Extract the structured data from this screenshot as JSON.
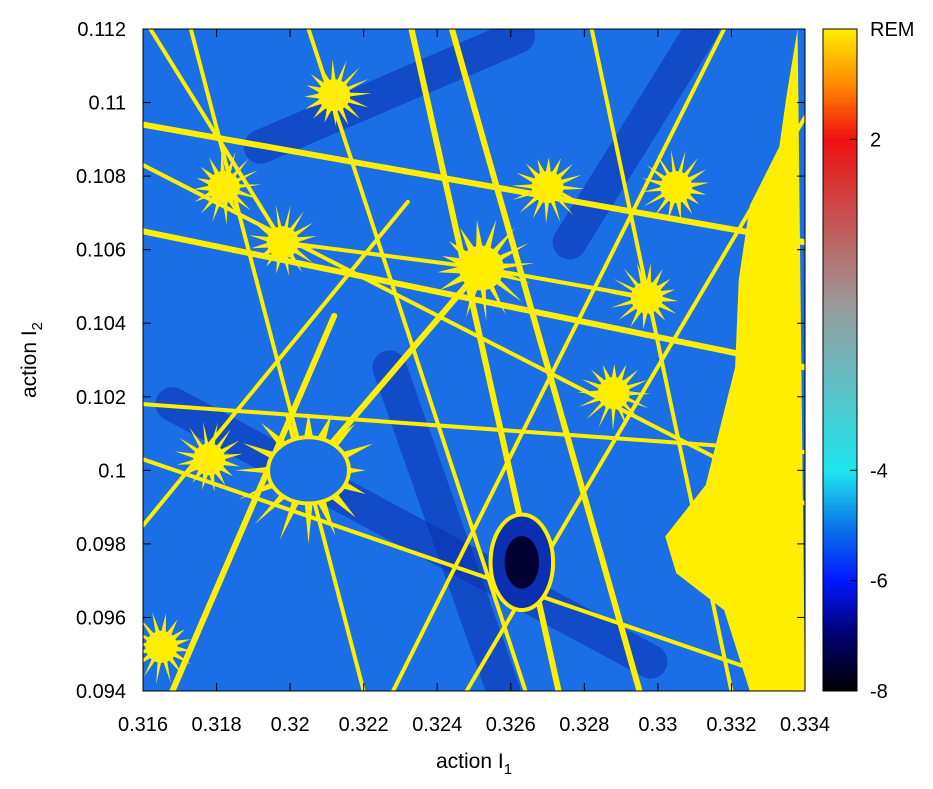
{
  "chart_data": {
    "type": "heatmap",
    "xlabel": "action I",
    "xlabel_sub": "1",
    "ylabel": "action I",
    "ylabel_sub": "2",
    "xlim": [
      0.316,
      0.334
    ],
    "ylim": [
      0.094,
      0.112
    ],
    "x_ticks": [
      "0.316",
      "0.318",
      "0.32",
      "0.322",
      "0.324",
      "0.326",
      "0.328",
      "0.33",
      "0.332",
      "0.334"
    ],
    "y_ticks": [
      "0.094",
      "0.096",
      "0.098",
      "0.1",
      "0.102",
      "0.104",
      "0.106",
      "0.108",
      "0.11",
      "0.112"
    ],
    "colorbar": {
      "title": "REM",
      "range": [
        -8,
        4
      ],
      "ticks": [
        "2",
        "-4",
        "-6",
        "-8"
      ],
      "tick_values": [
        2,
        -4,
        -6,
        -8
      ],
      "colormap": [
        {
          "value": -8,
          "color": "#000000"
        },
        {
          "value": -7,
          "color": "#00006e"
        },
        {
          "value": -6,
          "color": "#0018ff"
        },
        {
          "value": -5,
          "color": "#0a78e8"
        },
        {
          "value": -4,
          "color": "#1fe6f0"
        },
        {
          "value": -1,
          "color": "#9a9a9a"
        },
        {
          "value": 2,
          "color": "#f01010"
        },
        {
          "value": 3,
          "color": "#ff8a00"
        },
        {
          "value": 4,
          "color": "#ffee00"
        }
      ]
    },
    "grid": false,
    "colors": {
      "background_chaotic": "#1a6fe6",
      "regular_structure": "#ffee00",
      "stable_island": "#0a2fb0"
    },
    "features": {
      "resonance_nodes": [
        {
          "x": 0.3205,
          "y": 0.1
        },
        {
          "x": 0.3252,
          "y": 0.1055
        },
        {
          "x": 0.3198,
          "y": 0.1062
        },
        {
          "x": 0.3297,
          "y": 0.1047
        },
        {
          "x": 0.3288,
          "y": 0.1021
        },
        {
          "x": 0.3182,
          "y": 0.1077
        },
        {
          "x": 0.3178,
          "y": 0.1003
        },
        {
          "x": 0.3165,
          "y": 0.0952
        },
        {
          "x": 0.327,
          "y": 0.1077
        },
        {
          "x": 0.3212,
          "y": 0.1102
        },
        {
          "x": 0.3305,
          "y": 0.1077
        }
      ],
      "resonance_lines": [
        [
          0.316,
          0.1094,
          0.334,
          0.1062
        ],
        [
          0.316,
          0.1083,
          0.334,
          0.0991
        ],
        [
          0.316,
          0.1003,
          0.334,
          0.0941
        ],
        [
          0.316,
          0.1065,
          0.334,
          0.1028
        ],
        [
          0.316,
          0.1018,
          0.334,
          0.1005
        ],
        [
          0.316,
          0.0985,
          0.3232,
          0.1073
        ],
        [
          0.3168,
          0.094,
          0.3212,
          0.1042
        ],
        [
          0.3173,
          0.112,
          0.322,
          0.094
        ],
        [
          0.3205,
          0.112,
          0.3264,
          0.094
        ],
        [
          0.3244,
          0.112,
          0.3295,
          0.094
        ],
        [
          0.3228,
          0.094,
          0.3318,
          0.112
        ],
        [
          0.3248,
          0.094,
          0.334,
          0.1096
        ],
        [
          0.3233,
          0.112,
          0.3273,
          0.094
        ],
        [
          0.3282,
          0.112,
          0.332,
          0.094
        ],
        [
          0.3162,
          0.112,
          0.3198,
          0.1062
        ],
        [
          0.3205,
          0.1,
          0.3252,
          0.1055
        ],
        [
          0.3252,
          0.1055,
          0.3297,
          0.1047
        ],
        [
          0.3198,
          0.1062,
          0.3252,
          0.1055
        ]
      ],
      "dark_bands": [
        [
          0.3168,
          0.1018,
          0.3298,
          0.0948
        ],
        [
          0.3192,
          0.1088,
          0.3262,
          0.1118
        ],
        [
          0.3276,
          0.1062,
          0.3312,
          0.112
        ],
        [
          0.3227,
          0.1028,
          0.3258,
          0.094
        ]
      ],
      "islands": [
        {
          "x": 0.3205,
          "y": 0.1,
          "rx": 0.0011,
          "ry": 0.0009
        },
        {
          "x": 0.3263,
          "y": 0.0975,
          "rx": 0.00085,
          "ry": 0.0013
        },
        {
          "x": 0.3326,
          "y": 0.1012,
          "rx": 0.0002,
          "ry": 0.00015
        }
      ],
      "yellow_edge": [
        [
          0.3338,
          0.112
        ],
        [
          0.334,
          0.094
        ],
        [
          0.3325,
          0.094
        ],
        [
          0.3318,
          0.0962
        ],
        [
          0.3305,
          0.0972
        ],
        [
          0.3302,
          0.0982
        ],
        [
          0.3313,
          0.0996
        ],
        [
          0.3317,
          0.1012
        ],
        [
          0.3321,
          0.1028
        ],
        [
          0.3322,
          0.1052
        ],
        [
          0.3325,
          0.1072
        ],
        [
          0.3333,
          0.1088
        ],
        [
          0.3335,
          0.1102
        ]
      ]
    }
  }
}
